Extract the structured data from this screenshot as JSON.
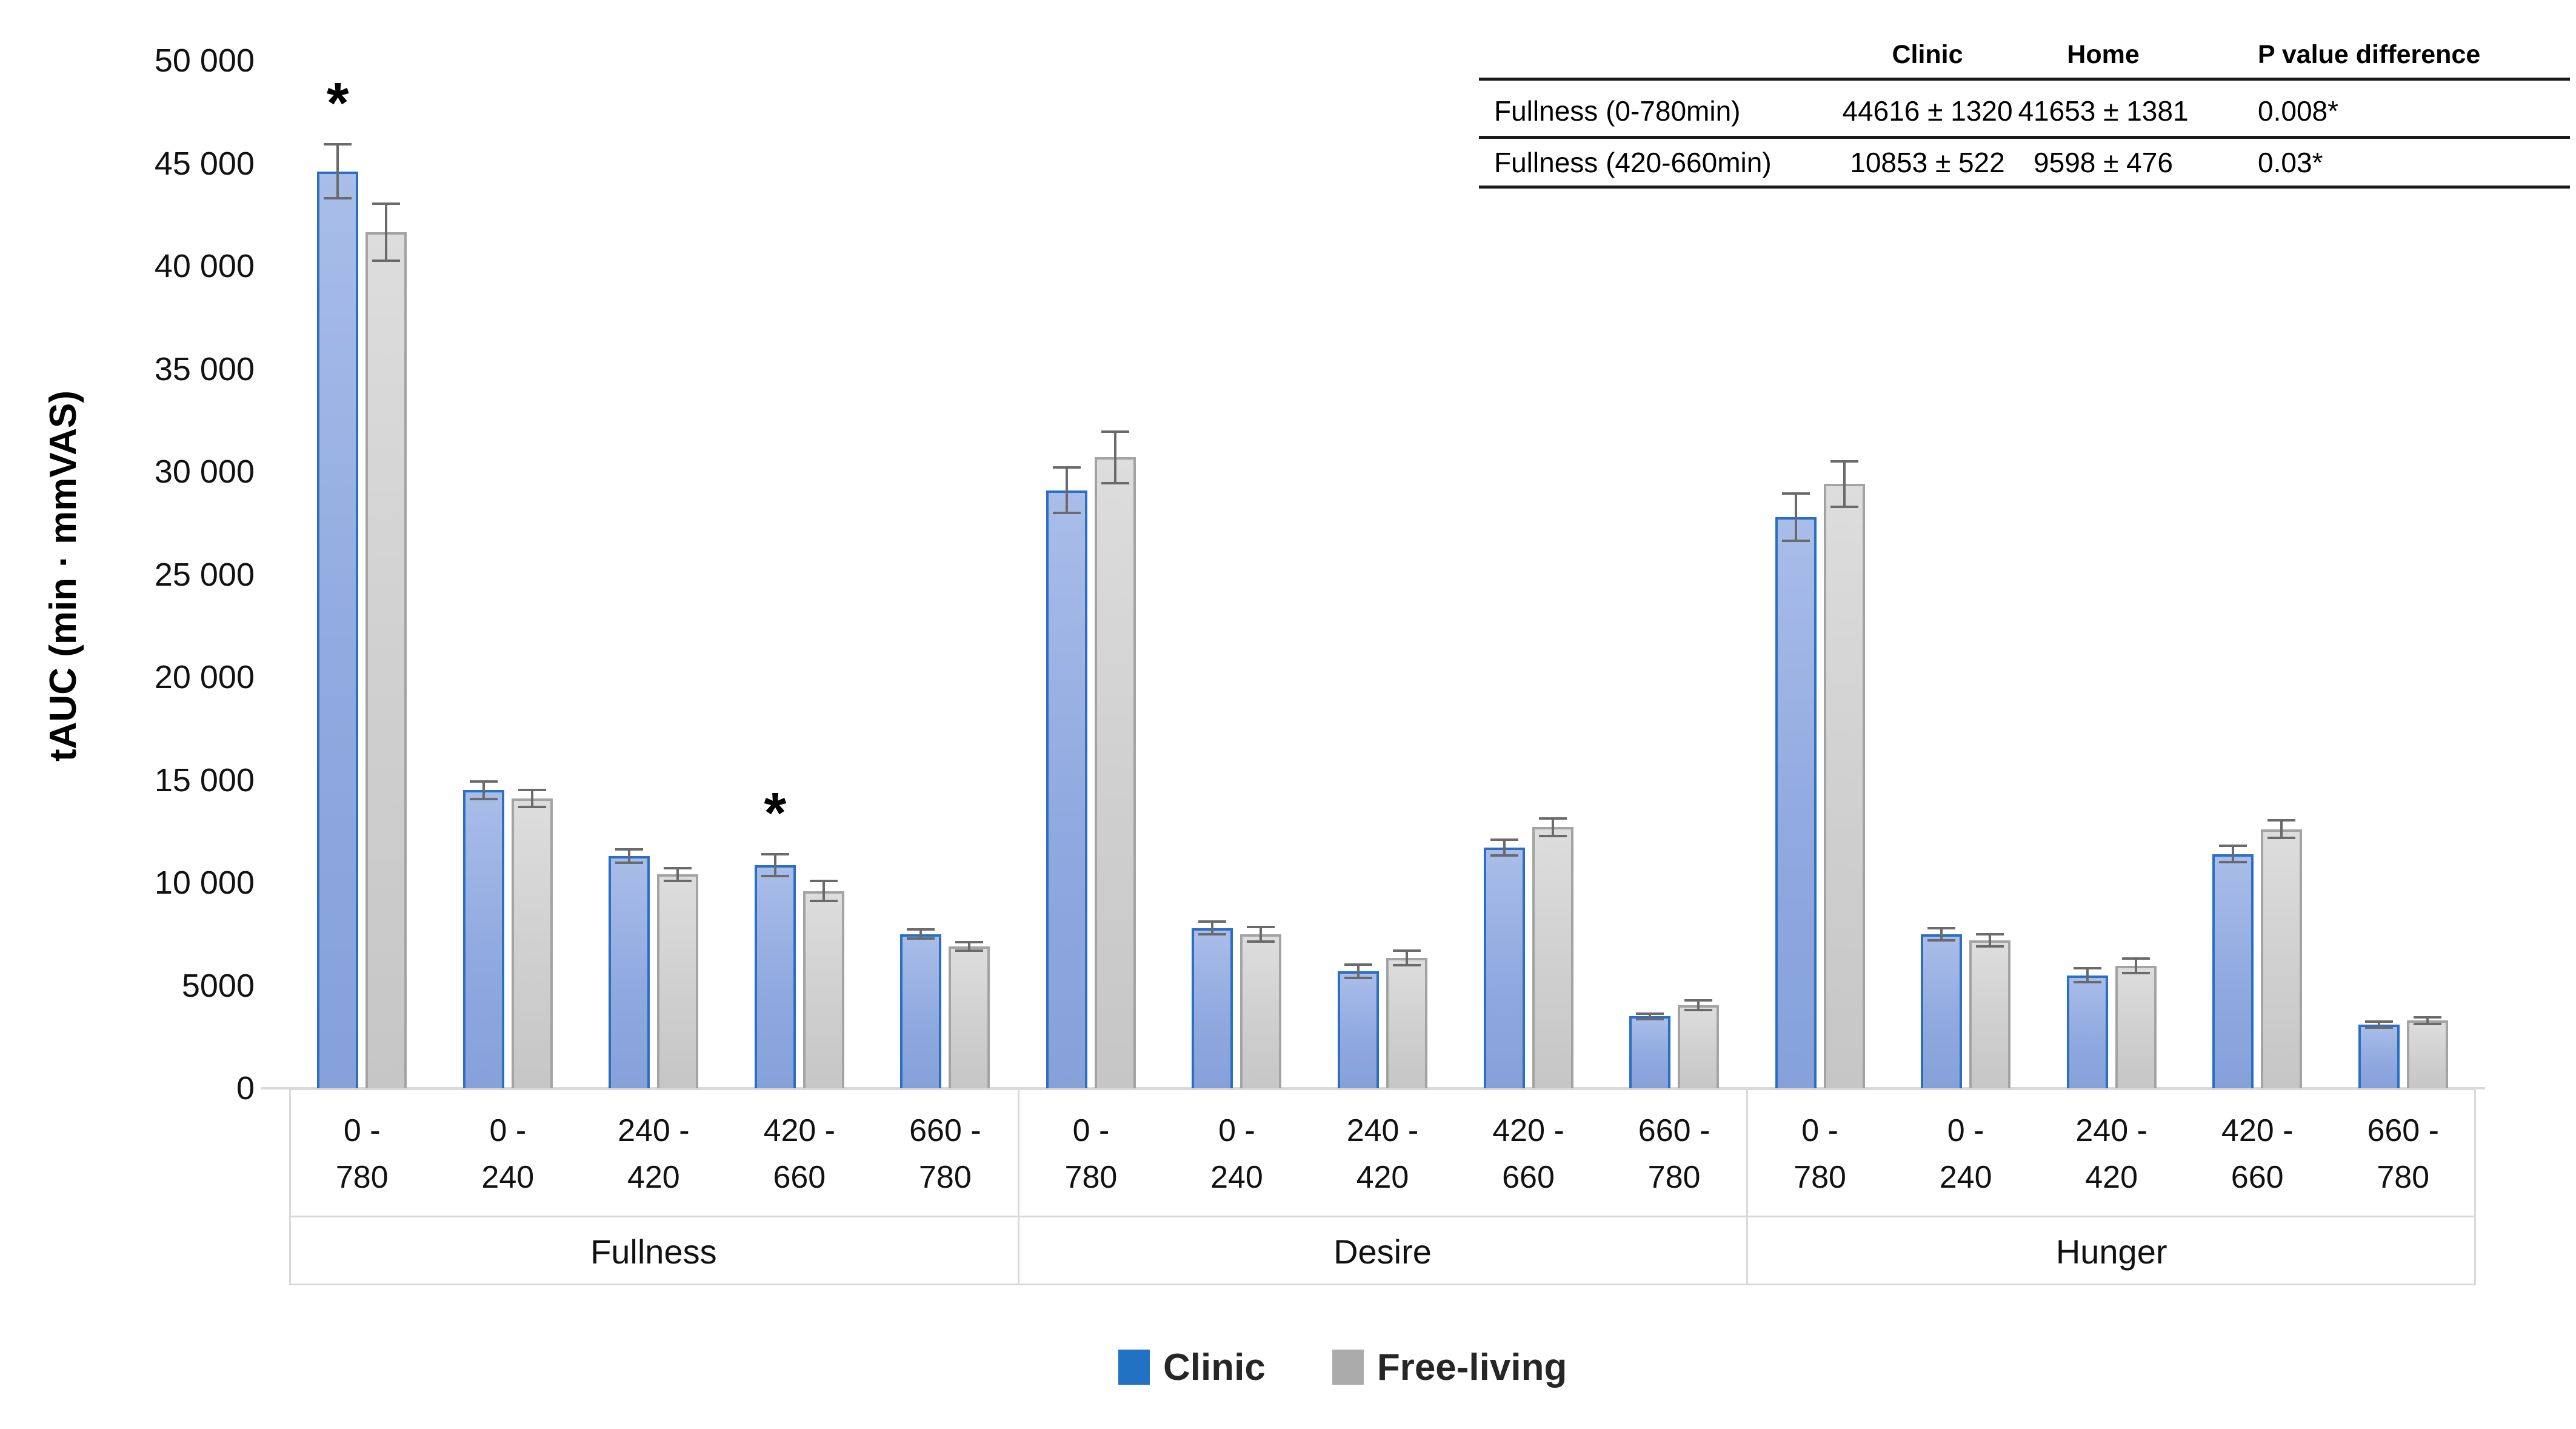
{
  "chart_data": {
    "type": "bar",
    "title": "",
    "ylabel": "tAUC (min · mmVAS)",
    "ylim": [
      0,
      50000
    ],
    "grid": "off",
    "legend_position": "bottom",
    "yticks": [
      {
        "label": "50 000",
        "value": 50000
      },
      {
        "label": "45 000",
        "value": 45000
      },
      {
        "label": "40 000",
        "value": 40000
      },
      {
        "label": "35 000",
        "value": 35000
      },
      {
        "label": "30 000",
        "value": 30000
      },
      {
        "label": "25 000",
        "value": 25000
      },
      {
        "label": "20 000",
        "value": 20000
      },
      {
        "label": "15 000",
        "value": 15000
      },
      {
        "label": "10 000",
        "value": 10000
      },
      {
        "label": "5000",
        "value": 5000
      },
      {
        "label": "0",
        "value": 0
      }
    ],
    "groups": [
      "Fullness",
      "Desire",
      "Hunger"
    ],
    "categories": [
      "0 - 780",
      "0 - 240",
      "240 - 420",
      "420 - 660",
      "660 - 780"
    ],
    "categories_line1": [
      "0 -",
      "0 -",
      "240 -",
      "420 -",
      "660 -"
    ],
    "categories_line2": [
      "780",
      "240",
      "420",
      "660",
      "780"
    ],
    "series": [
      {
        "name": "Clinic",
        "legend_color": "#2272C4",
        "bar_border": "#2B6FC4",
        "values": [
          [
            44616,
            14500,
            11300,
            10853,
            7500
          ],
          [
            29100,
            7800,
            5700,
            11700,
            3500
          ],
          [
            27800,
            7500,
            5500,
            11400,
            3100
          ]
        ],
        "errors": [
          [
            1320,
            420,
            320,
            522,
            220
          ],
          [
            1100,
            300,
            330,
            380,
            130
          ],
          [
            1150,
            300,
            330,
            390,
            140
          ]
        ]
      },
      {
        "name": "Free-living",
        "legend_color": "#ABABAB",
        "bar_border": "#A3A3A3",
        "values": [
          [
            41653,
            14100,
            10400,
            9598,
            6900
          ],
          [
            30700,
            7500,
            6350,
            12700,
            4050
          ],
          [
            29400,
            7200,
            5950,
            12600,
            3300
          ]
        ],
        "errors": [
          [
            1381,
            420,
            320,
            476,
            200
          ],
          [
            1250,
            360,
            360,
            430,
            230
          ],
          [
            1100,
            290,
            360,
            430,
            160
          ]
        ]
      }
    ],
    "significance_markers": [
      {
        "group_index": 0,
        "category_index": 0,
        "series": "Clinic",
        "symbol": "*"
      },
      {
        "group_index": 0,
        "category_index": 3,
        "series": "Clinic",
        "symbol": "*"
      }
    ],
    "error_bar_color": "#6A6A6A",
    "axis_box_color": "#D9D9D9"
  },
  "table": {
    "headers": {
      "clinic": "Clinic",
      "home": "Home",
      "p": "P value difference"
    },
    "rows": [
      {
        "label": "Fullness (0-780min)",
        "clinic": "44616 ± 1320",
        "home": "41653 ± 1381",
        "p": "0.008*"
      },
      {
        "label": "Fullness (420-660min)",
        "clinic": "10853 ± 522",
        "home": "9598 ± 476",
        "p": "0.03*"
      }
    ]
  },
  "legend": {
    "items": [
      {
        "label": "Clinic",
        "color": "#2272C4"
      },
      {
        "label": "Free-living",
        "color": "#ABABAB"
      }
    ]
  }
}
